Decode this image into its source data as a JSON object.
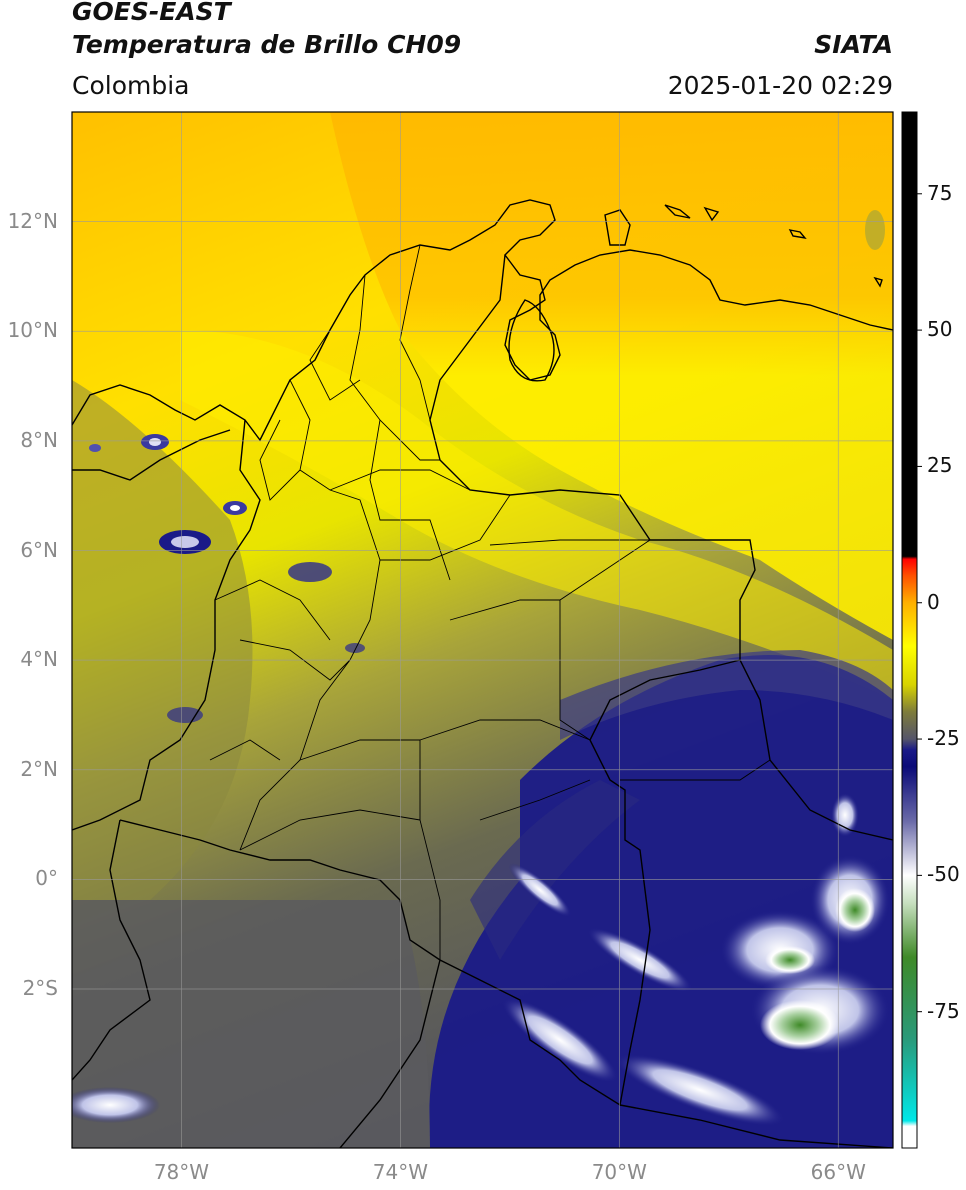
{
  "header": {
    "satellite": "GOES-EAST",
    "product": "Temperatura de Brillo CH09",
    "region": "Colombia",
    "agency": "SIATA",
    "datetime": "2025-01-20 02:29"
  },
  "map": {
    "lon_range": [
      -80.0,
      -65.0
    ],
    "lat_range": [
      -4.9,
      14.0
    ],
    "lon_ticks": [
      {
        "value": -78,
        "label": "78°W"
      },
      {
        "value": -74,
        "label": "74°W"
      },
      {
        "value": -70,
        "label": "70°W"
      },
      {
        "value": -66,
        "label": "66°W"
      }
    ],
    "lat_ticks": [
      {
        "value": 12,
        "label": "12°N"
      },
      {
        "value": 10,
        "label": "10°N"
      },
      {
        "value": 8,
        "label": "8°N"
      },
      {
        "value": 6,
        "label": "6°N"
      },
      {
        "value": 4,
        "label": "4°N"
      },
      {
        "value": 2,
        "label": "2°N"
      },
      {
        "value": 0,
        "label": "0°"
      },
      {
        "value": -2,
        "label": "2°S"
      }
    ],
    "grid": true
  },
  "colorbar": {
    "range": [
      -100,
      90
    ],
    "ticks": [
      {
        "value": 75,
        "label": "75"
      },
      {
        "value": 50,
        "label": "50"
      },
      {
        "value": 25,
        "label": "25"
      },
      {
        "value": 0,
        "label": "0"
      },
      {
        "value": -25,
        "label": "-25"
      },
      {
        "value": -50,
        "label": "-50"
      },
      {
        "value": -75,
        "label": "-75"
      }
    ],
    "stops": [
      {
        "value": -100,
        "color": "#ffffff"
      },
      {
        "value": -96,
        "color": "#ffffff"
      },
      {
        "value": -95,
        "color": "#00e8e8"
      },
      {
        "value": -80,
        "color": "#2a9a7a"
      },
      {
        "value": -65,
        "color": "#3f8a28"
      },
      {
        "value": -55,
        "color": "#c8e0c0"
      },
      {
        "value": -50,
        "color": "#ffffff"
      },
      {
        "value": -40,
        "color": "#6a6aa8"
      },
      {
        "value": -30,
        "color": "#0a0a78"
      },
      {
        "value": -27,
        "color": "#1a1a88"
      },
      {
        "value": -25,
        "color": "#55556a"
      },
      {
        "value": -20,
        "color": "#7e7c3a"
      },
      {
        "value": -15,
        "color": "#d8d400"
      },
      {
        "value": -8,
        "color": "#ffff00"
      },
      {
        "value": 0,
        "color": "#ffb000"
      },
      {
        "value": 5,
        "color": "#ff5000"
      },
      {
        "value": 8,
        "color": "#ff0000"
      },
      {
        "value": 8.5,
        "color": "#000000"
      },
      {
        "value": 90,
        "color": "#000000"
      }
    ]
  }
}
